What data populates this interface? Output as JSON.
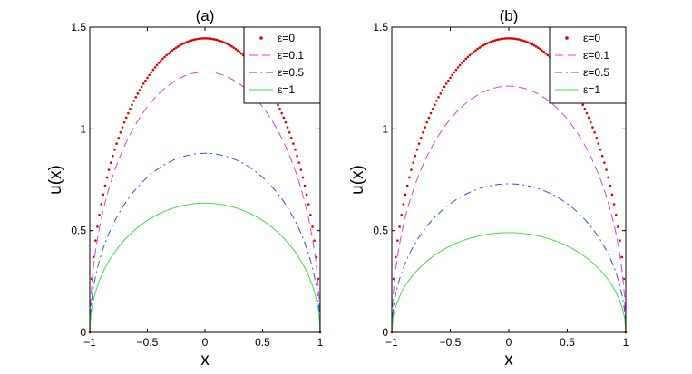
{
  "chart_data": [
    {
      "type": "line",
      "title": "(a)",
      "xlabel": "x",
      "ylabel": "u(x)",
      "xlim": [
        -1,
        1
      ],
      "ylim": [
        0,
        1.5
      ],
      "xticks": [
        "−1",
        "−0.5",
        "0",
        "0.5",
        "1"
      ],
      "yticks": [
        "0",
        "0.5",
        "1",
        "1.5"
      ],
      "legend_position": "top-right",
      "series": [
        {
          "name": "ε=0",
          "style": "dots",
          "color": "#e00000",
          "peak": 1.445
        },
        {
          "name": "ε=0.1",
          "style": "dashed",
          "color": "#e040e0",
          "peak": 1.28
        },
        {
          "name": "ε=0.5",
          "style": "dashdot",
          "color": "#2a5ae0",
          "peak": 0.88
        },
        {
          "name": "ε=1",
          "style": "solid",
          "color": "#40e040",
          "peak": 0.635
        }
      ]
    },
    {
      "type": "line",
      "title": "(b)",
      "xlabel": "x",
      "ylabel": "u(x)",
      "xlim": [
        -1,
        1
      ],
      "ylim": [
        0,
        1.5
      ],
      "xticks": [
        "−1",
        "−0.5",
        "0",
        "0.5",
        "1"
      ],
      "yticks": [
        "0",
        "0.5",
        "1",
        "1.5"
      ],
      "legend_position": "top-right",
      "series": [
        {
          "name": "ε=0",
          "style": "dots",
          "color": "#e00000",
          "peak": 1.445
        },
        {
          "name": "ε=0.1",
          "style": "dashed",
          "color": "#e040e0",
          "peak": 1.21
        },
        {
          "name": "ε=0.5",
          "style": "dashdot",
          "color": "#2a5ae0",
          "peak": 0.73
        },
        {
          "name": "ε=1",
          "style": "solid",
          "color": "#40e040",
          "peak": 0.49
        }
      ]
    }
  ]
}
